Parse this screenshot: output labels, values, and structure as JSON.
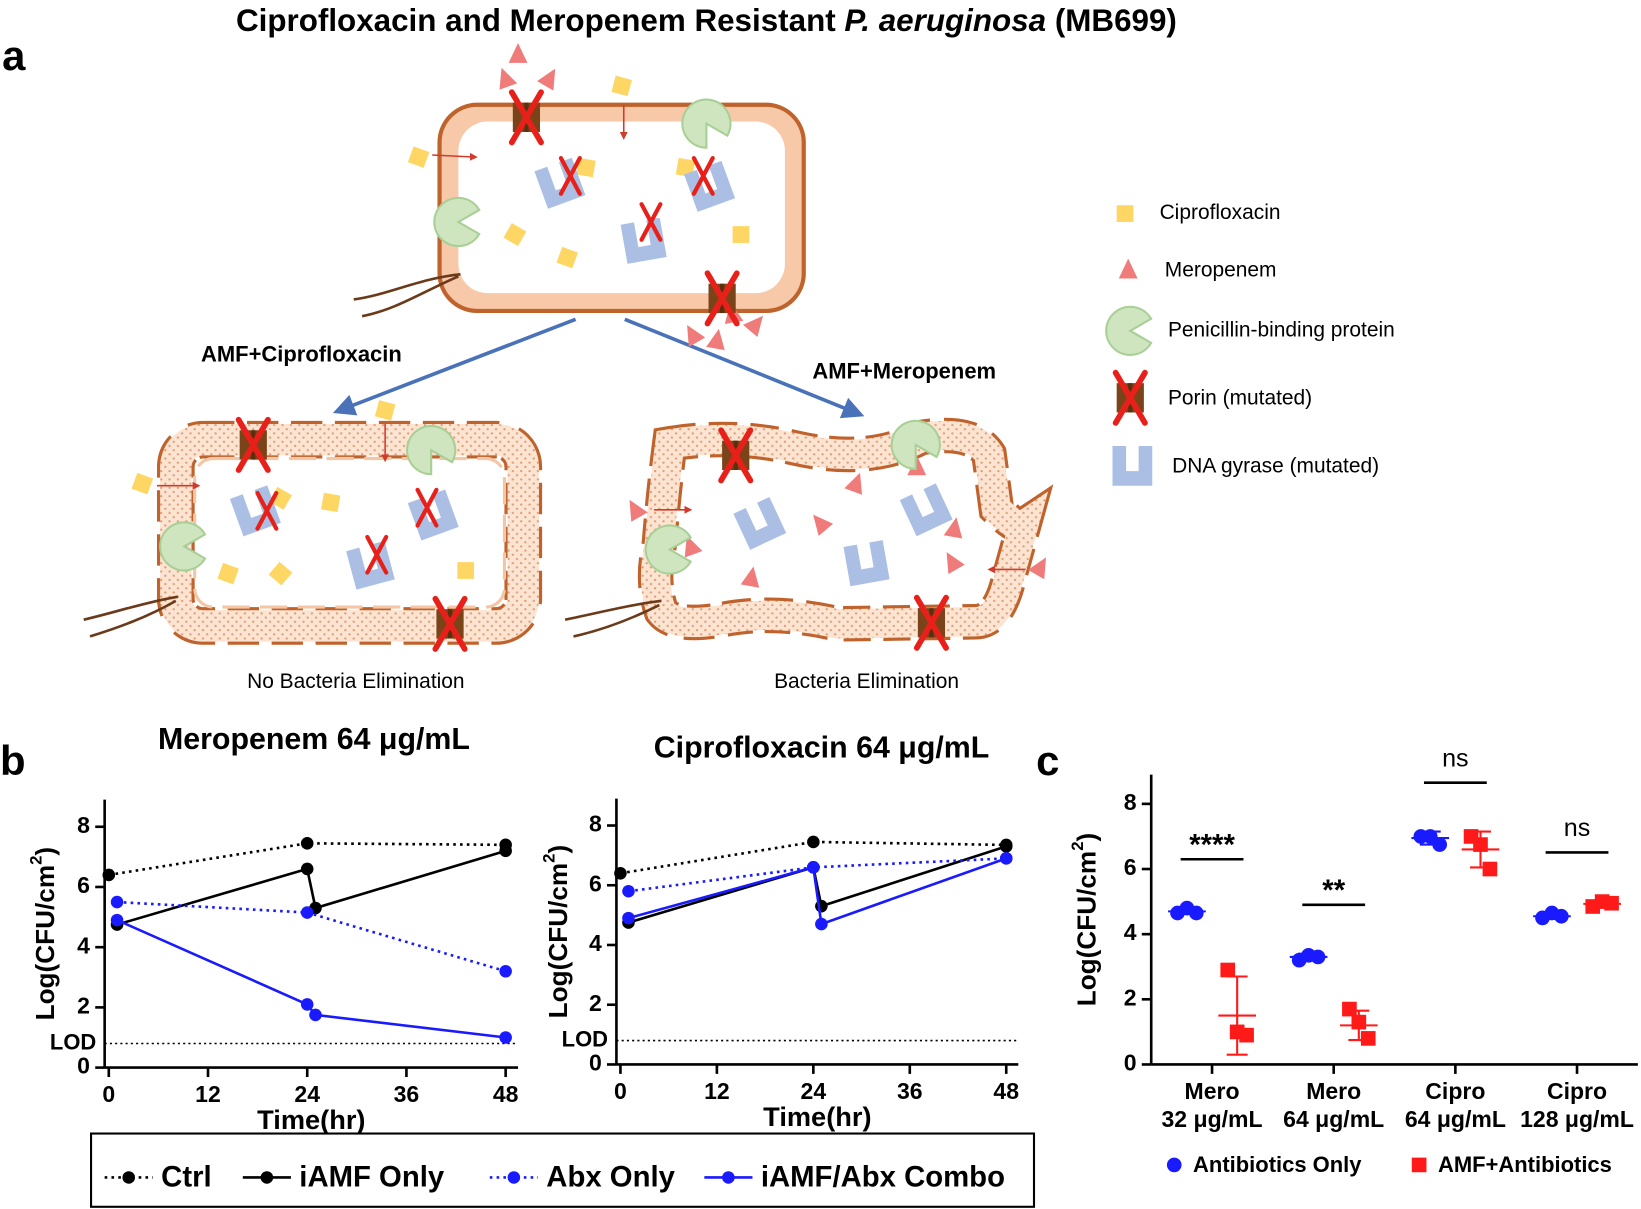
{
  "title_parts": [
    "Ciprofloxacin and Meropenem Resistant ",
    "P. aeruginosa",
    " (MB699)"
  ],
  "panel_labels": [
    "a",
    "b",
    "c"
  ],
  "diagram": {
    "arrow_labels": [
      "AMF+Ciprofloxacin",
      "AMF+Meropenem"
    ],
    "outcomes": [
      "No Bacteria Elimination",
      "Bacteria Elimination"
    ],
    "legend": [
      "Ciprofloxacin",
      "Meropenem",
      "Penicillin-binding protein",
      "Porin (mutated)",
      "DNA gyrase (mutated)"
    ]
  },
  "chart_data": [
    {
      "type": "line",
      "title": "Meropenem 64 μg/mL",
      "x_label": "Time(hr)",
      "y_label": {
        "text": "Log(CFU/cm",
        "sup": "2",
        "close": ")"
      },
      "xlim": [
        -0.5,
        49.5
      ],
      "xticks": [
        0,
        12,
        24,
        36,
        48
      ],
      "ylim": [
        0,
        8.9
      ],
      "yticks": [
        0,
        2,
        4,
        6,
        8
      ],
      "reference_line": {
        "label": "LOD",
        "value": 0.8
      },
      "series": [
        {
          "name": "Ctrl",
          "color": "#000000",
          "dash": "dotted",
          "x": [
            0,
            24,
            48
          ],
          "values": [
            6.4,
            7.45,
            7.4
          ]
        },
        {
          "name": "iAMF Only",
          "color": "#000000",
          "dash": "solid",
          "x": [
            1,
            24,
            25,
            48
          ],
          "values": [
            4.75,
            6.6,
            5.3,
            7.2
          ]
        },
        {
          "name": "Abx Only",
          "color": "#1a1aff",
          "dash": "dotted",
          "x": [
            1,
            24,
            48
          ],
          "values": [
            5.5,
            5.15,
            3.2
          ]
        },
        {
          "name": "iAMF/Abx Combo",
          "color": "#1a1aff",
          "dash": "solid",
          "x": [
            1,
            24,
            25,
            48
          ],
          "values": [
            4.9,
            2.1,
            1.75,
            1.0
          ]
        }
      ]
    },
    {
      "type": "line",
      "title": "Ciprofloxacin 64 μg/mL",
      "x_label": "Time(hr)",
      "y_label": {
        "text": "Log(CFU/cm",
        "sup": "2",
        "close": ")"
      },
      "xlim": [
        -0.5,
        49.5
      ],
      "xticks": [
        0,
        12,
        24,
        36,
        48
      ],
      "ylim": [
        0,
        8.9
      ],
      "yticks": [
        0,
        2,
        4,
        6,
        8
      ],
      "reference_line": {
        "label": "LOD",
        "value": 0.8
      },
      "series": [
        {
          "color": "#000000",
          "dash": "dotted",
          "x": [
            0,
            24,
            48
          ],
          "values": [
            6.4,
            7.45,
            7.35
          ]
        },
        {
          "color": "#000000",
          "dash": "solid",
          "x": [
            1,
            24,
            25,
            48
          ],
          "values": [
            4.75,
            6.6,
            5.3,
            7.3
          ]
        },
        {
          "color": "#1a1aff",
          "dash": "dotted",
          "x": [
            1,
            24,
            48
          ],
          "values": [
            5.8,
            6.6,
            6.9
          ]
        },
        {
          "color": "#1a1aff",
          "dash": "solid",
          "x": [
            1,
            24,
            25,
            48
          ],
          "values": [
            4.9,
            6.6,
            4.7,
            6.9
          ]
        }
      ]
    },
    {
      "type": "dotplot",
      "y_label": {
        "text": "Log(CFU/cm",
        "sup": "2",
        "close": ")"
      },
      "categories": [
        [
          "Mero",
          "32 μg/mL"
        ],
        [
          "Mero",
          "64 μg/mL"
        ],
        [
          "Cipro",
          "64 μg/mL"
        ],
        [
          "Cipro",
          "128 μg/mL"
        ]
      ],
      "ylim": [
        0,
        8.9
      ],
      "yticks": [
        0,
        2,
        4,
        6,
        8
      ],
      "significance": [
        "****",
        "**",
        "ns",
        "ns"
      ],
      "series": [
        {
          "name": "Antibiotics Only",
          "color": "#1a1aff",
          "marker": "circle",
          "values": [
            [
              4.65,
              4.8,
              4.65
            ],
            [
              3.2,
              3.35,
              3.3
            ],
            [
              7.0,
              7.0,
              6.75
            ],
            [
              4.5,
              4.65,
              4.55
            ]
          ],
          "mean": [
            4.7,
            3.3,
            6.95,
            4.55
          ],
          "sd": [
            0.08,
            0.1,
            0.2,
            0.08
          ]
        },
        {
          "name": "AMF+Antibiotics",
          "color": "#ff1a1a",
          "marker": "square",
          "values": [
            [
              2.9,
              1.0,
              0.9
            ],
            [
              1.7,
              1.3,
              0.8
            ],
            [
              7.0,
              6.75,
              6.0
            ],
            [
              4.85,
              5.0,
              4.95
            ]
          ],
          "mean": [
            1.5,
            1.2,
            6.6,
            4.93
          ],
          "sd": [
            1.2,
            0.45,
            0.55,
            0.08
          ]
        }
      ]
    }
  ]
}
